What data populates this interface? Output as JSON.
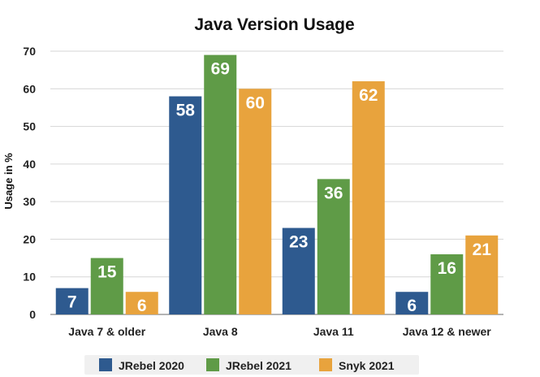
{
  "chart_data": {
    "type": "bar",
    "title": "Java Version Usage",
    "ylabel": "Usage in %",
    "xlabel": "",
    "ylim": [
      0,
      70
    ],
    "yticks": [
      0,
      10,
      20,
      30,
      40,
      50,
      60,
      70
    ],
    "grid": true,
    "legend_position": "bottom",
    "categories": [
      "Java 7 & older",
      "Java 8",
      "Java 11",
      "Java 12 & newer"
    ],
    "series": [
      {
        "name": "JRebel 2020",
        "color": "#2e5a8f",
        "values": [
          7,
          58,
          23,
          6
        ]
      },
      {
        "name": "JRebel 2021",
        "color": "#5f9b47",
        "values": [
          15,
          69,
          36,
          16
        ]
      },
      {
        "name": "Snyk 2021",
        "color": "#e8a33d",
        "values": [
          6,
          60,
          62,
          21
        ]
      }
    ]
  }
}
